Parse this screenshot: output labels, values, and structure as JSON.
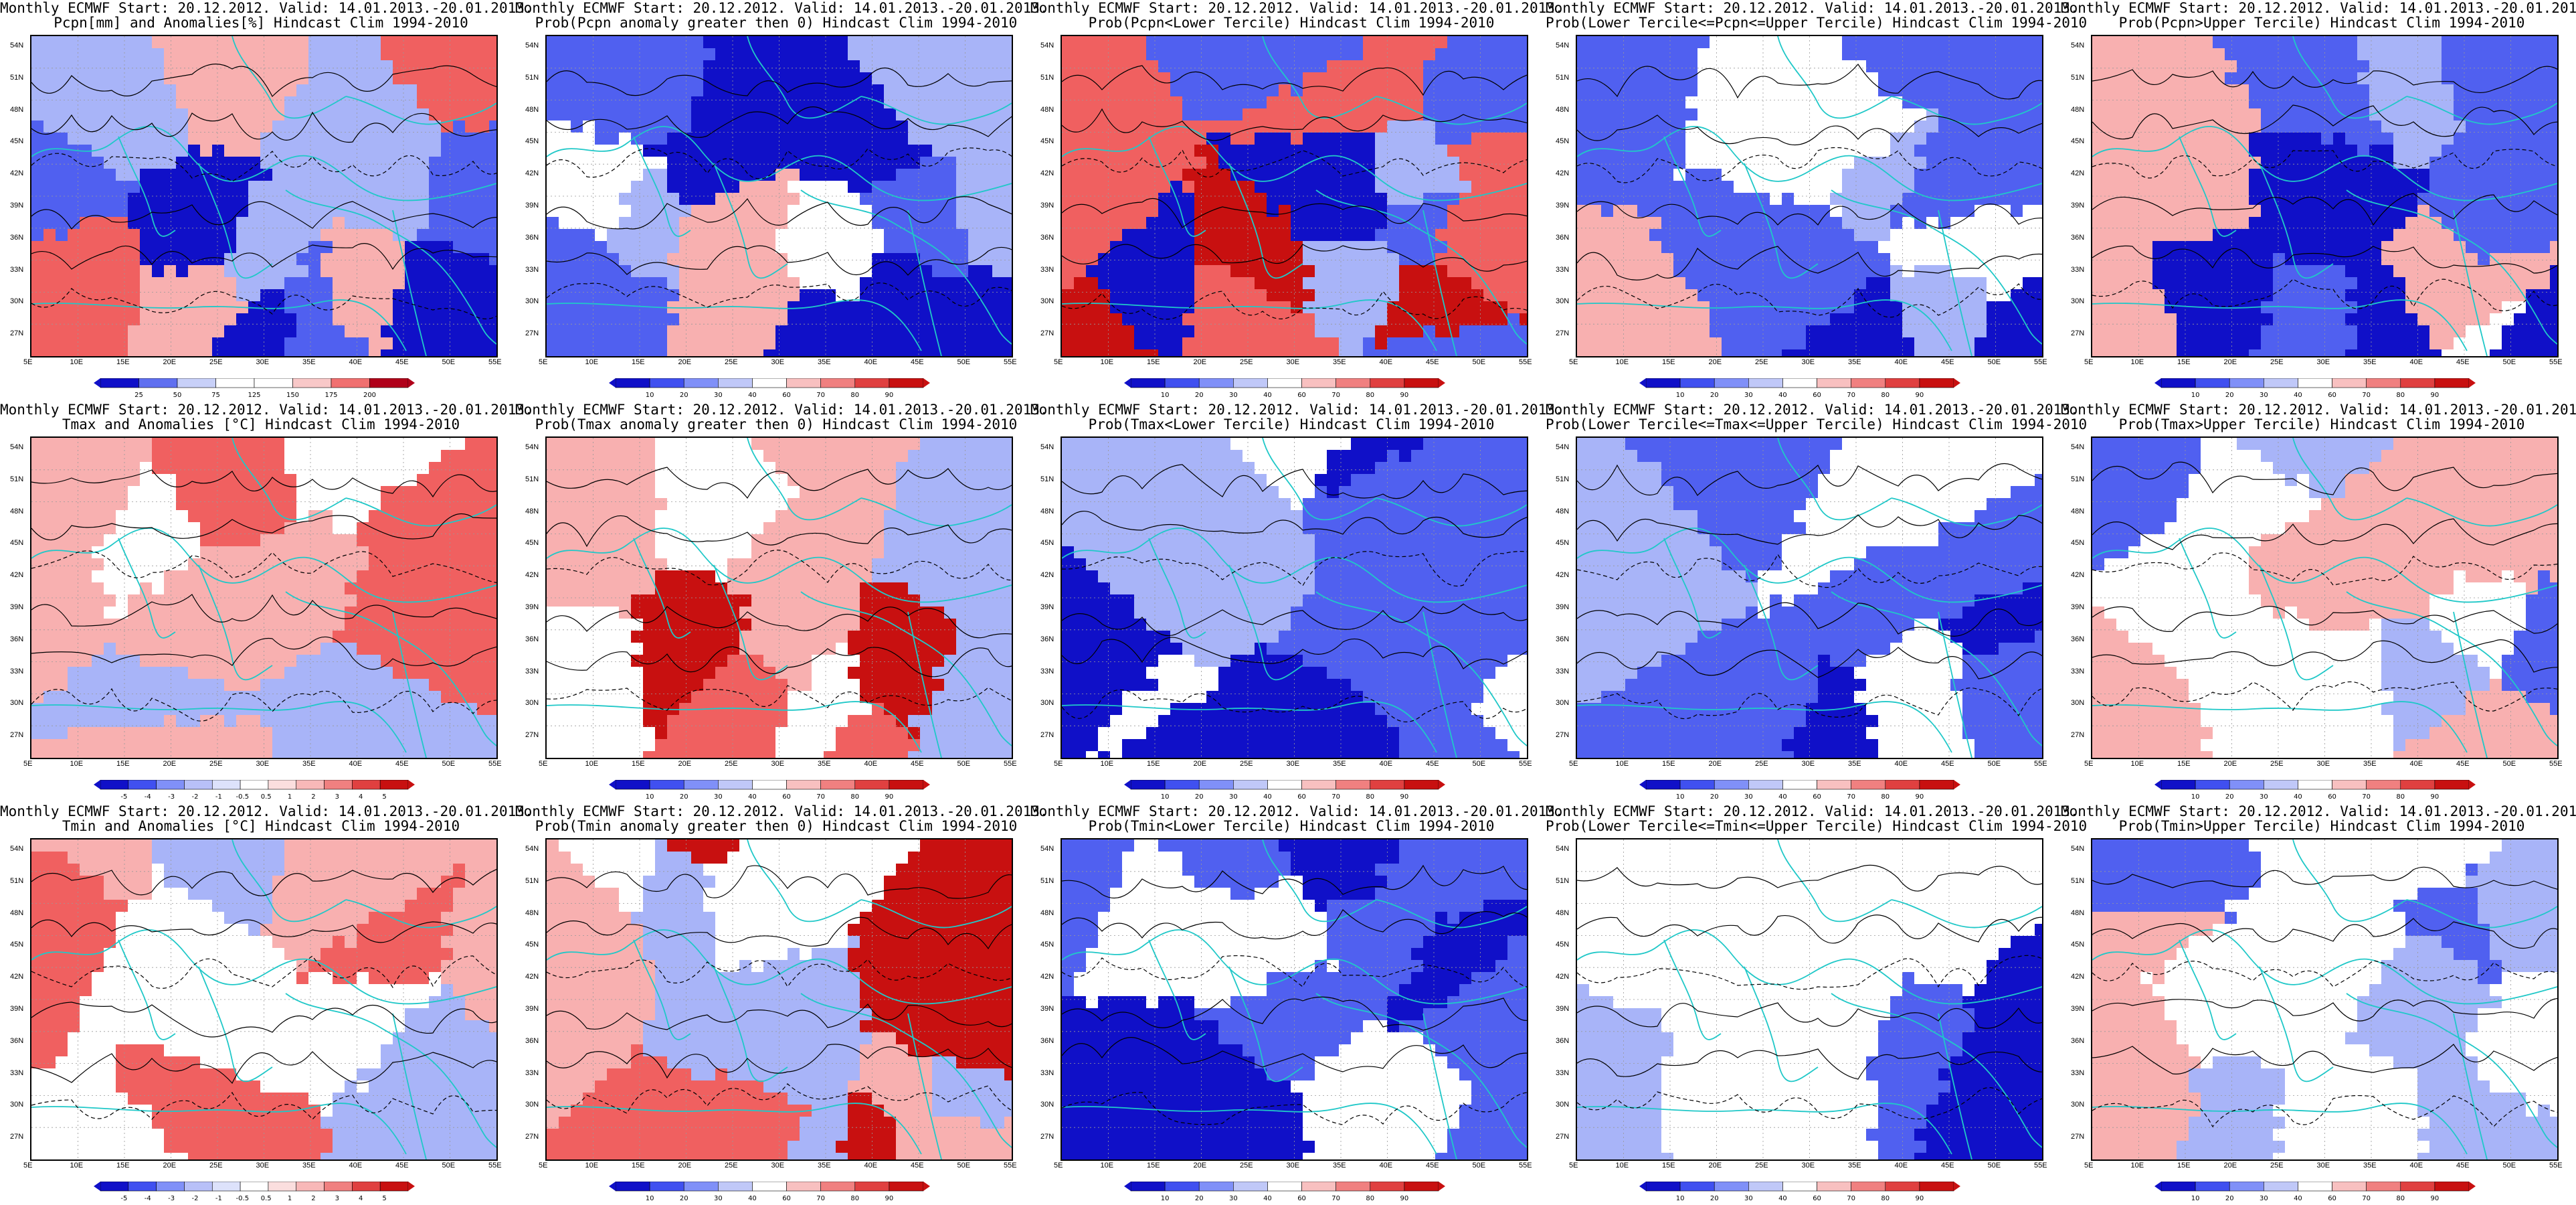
{
  "header_prefix": "Monthly ECMWF Start: 20.12.2012. Valid: 14.01.2013.-20.01.2013.",
  "axes": {
    "lon_ticks": [
      "5E",
      "10E",
      "15E",
      "20E",
      "25E",
      "30E",
      "35E",
      "40E",
      "45E",
      "50E",
      "55E"
    ],
    "lat_ticks": [
      "54N",
      "51N",
      "48N",
      "45N",
      "42N",
      "39N",
      "36N",
      "33N",
      "30N",
      "27N"
    ]
  },
  "colors": {
    "blue_dark": "#1010c8",
    "blue_mid": "#5060f0",
    "blue_light": "#a8b4f8",
    "red_light": "#f8b0b0",
    "red_mid": "#f06060",
    "red_dark": "#c81010",
    "coast": "#20c8c8",
    "contour": "#000000"
  },
  "colorbars": {
    "pcpn_anom": [
      "25",
      "50",
      "75",
      "125",
      "150",
      "175",
      "200"
    ],
    "temp_anom": [
      "-5",
      "-4",
      "-3",
      "-2",
      "-1",
      "-0.5",
      "0.5",
      "1",
      "2",
      "3",
      "4",
      "5"
    ],
    "prob": [
      "10",
      "20",
      "30",
      "40",
      "60",
      "70",
      "80",
      "90"
    ]
  },
  "panels": [
    {
      "subtitle": "Pcpn[mm] and Anomalies[%] Hindcast Clim 1994-2010",
      "scheme": "pcpn_anom",
      "bar": "pcpn_anom"
    },
    {
      "subtitle": "Prob(Pcpn anomaly greater then 0) Hindcast Clim 1994-2010",
      "scheme": "pcpn_pos",
      "bar": "prob"
    },
    {
      "subtitle": "Prob(Pcpn<Lower Tercile) Hindcast Clim 1994-2010",
      "scheme": "pcpn_low",
      "bar": "prob"
    },
    {
      "subtitle": "Prob(Lower Tercile<=Pcpn<=Upper Tercile) Hindcast Clim 1994-2010",
      "scheme": "pcpn_mid",
      "bar": "prob"
    },
    {
      "subtitle": "Prob(Pcpn>Upper Tercile) Hindcast Clim 1994-2010",
      "scheme": "pcpn_up",
      "bar": "prob"
    },
    {
      "subtitle": "Tmax and Anomalies [°C] Hindcast Clim 1994-2010",
      "scheme": "warm",
      "bar": "temp_anom"
    },
    {
      "subtitle": "Prob(Tmax anomaly greater then 0) Hindcast Clim 1994-2010",
      "scheme": "warm_strong",
      "bar": "prob"
    },
    {
      "subtitle": "Prob(Tmax<Lower Tercile) Hindcast Clim 1994-2010",
      "scheme": "cold_strong",
      "bar": "prob"
    },
    {
      "subtitle": "Prob(Lower Tercile<=Tmax<=Upper Tercile) Hindcast Clim 1994-2010",
      "scheme": "mixed",
      "bar": "prob"
    },
    {
      "subtitle": "Prob(Tmax>Upper Tercile) Hindcast Clim 1994-2010",
      "scheme": "light",
      "bar": "prob"
    },
    {
      "subtitle": "Tmin and Anomalies [°C] Hindcast Clim 1994-2010",
      "scheme": "warm",
      "bar": "temp_anom"
    },
    {
      "subtitle": "Prob(Tmin anomaly greater then 0) Hindcast Clim 1994-2010",
      "scheme": "warm_strong",
      "bar": "prob"
    },
    {
      "subtitle": "Prob(Tmin<Lower Tercile) Hindcast Clim 1994-2010",
      "scheme": "cold_strong",
      "bar": "prob"
    },
    {
      "subtitle": "Prob(Lower Tercile<=Tmin<=Upper Tercile) Hindcast Clim 1994-2010",
      "scheme": "mixed",
      "bar": "prob"
    },
    {
      "subtitle": "Prob(Tmin>Upper Tercile) Hindcast Clim 1994-2010",
      "scheme": "light",
      "bar": "prob"
    }
  ]
}
